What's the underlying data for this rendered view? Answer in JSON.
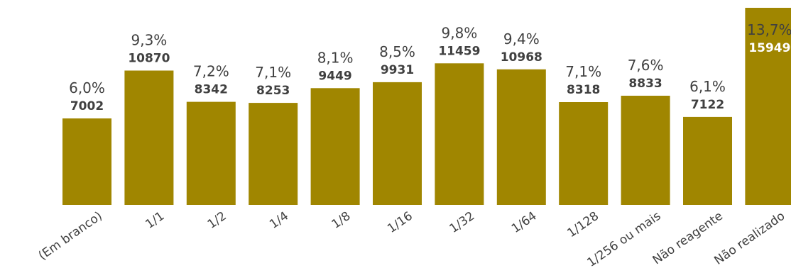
{
  "chart_data": {
    "type": "bar",
    "bar_color": "#A08600",
    "text_color": "#404040",
    "highlight_text_color": "#ffffff",
    "categories": [
      "(Em branco)",
      "1/1",
      "1/2",
      "1/4",
      "1/8",
      "1/16",
      "1/32",
      "1/64",
      "1/128",
      "1/256 ou mais",
      "Não reagente",
      "Não realizado"
    ],
    "values": [
      7002,
      10870,
      8342,
      8253,
      9449,
      9931,
      11459,
      10968,
      8318,
      8833,
      7122,
      15949
    ],
    "percent_labels": [
      "6,0%",
      "9,3%",
      "7,2%",
      "7,1%",
      "8,1%",
      "8,5%",
      "9,8%",
      "9,4%",
      "7,1%",
      "7,6%",
      "6,1%",
      "13,7%"
    ],
    "value_labels": [
      "7002",
      "10870",
      "8342",
      "8253",
      "9449",
      "9931",
      "11459",
      "10968",
      "8318",
      "8833",
      "7122",
      "15949"
    ],
    "ylim": [
      0,
      15949
    ],
    "grid": false,
    "legend": "none"
  }
}
